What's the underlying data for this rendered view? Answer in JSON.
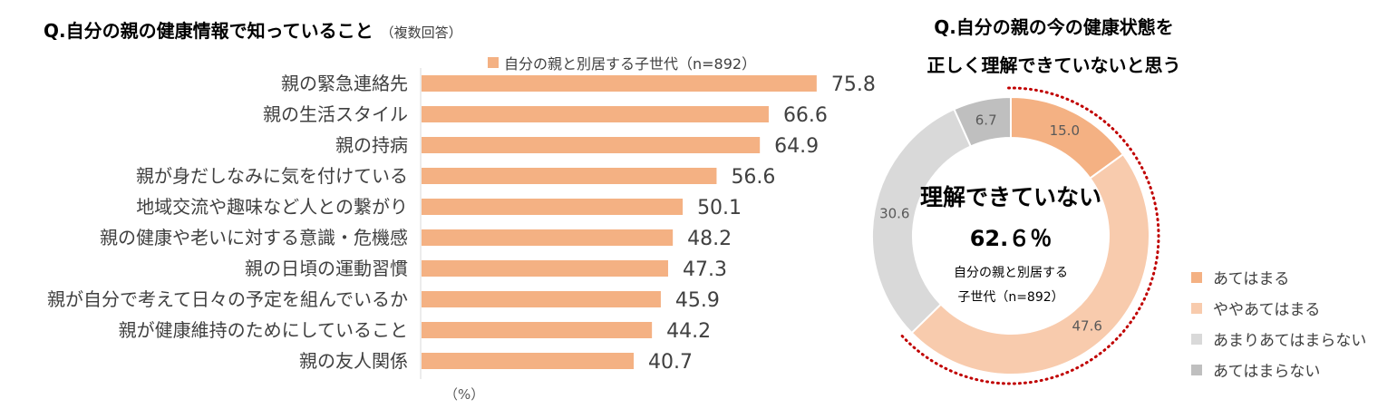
{
  "bar_chart": {
    "title": "Q.自分の親の健康情報で知っていること",
    "title_note": "（複数回答）",
    "legend": "自分の親と別居する子世代（n=892）",
    "unit_label": "（%）"
  },
  "donut": {
    "title_line1": "Q.自分の親の今の健康状態を",
    "title_line2": "正しく理解できていないと思う",
    "center_title": "理解できていない",
    "center_value": "62.６％",
    "center_sub_line1": "自分の親と別居する",
    "center_sub_line2": "子世代（n=892）"
  },
  "chart_data": [
    {
      "type": "bar",
      "orientation": "horizontal",
      "title": "Q.自分の親の健康情報で知っていること",
      "subtitle": "（複数回答）",
      "categories": [
        "親の緊急連絡先",
        "親の生活スタイル",
        "親の持病",
        "親が身だしなみに気を付けている",
        "地域交流や趣味など人との繋がり",
        "親の健康や老いに対する意識・危機感",
        "親の日頃の運動習慣",
        "親が自分で考えて日々の予定を組んでいるか",
        "親が健康維持のためにしていること",
        "親の友人関係"
      ],
      "series": [
        {
          "name": "自分の親と別居する子世代（n=892）",
          "values": [
            75.8,
            66.6,
            64.9,
            56.6,
            50.1,
            48.2,
            47.3,
            45.9,
            44.2,
            40.7
          ],
          "color": "#f4b183"
        }
      ],
      "xlabel": "（%）",
      "xlim": [
        0,
        100
      ],
      "grid": false,
      "legend_position": "top"
    },
    {
      "type": "pie",
      "style": "donut",
      "title": "Q.自分の親の今の健康状態を正しく理解できていないと思う",
      "slices": [
        {
          "label": "あてはまる",
          "value": 15.0,
          "color": "#f4b183"
        },
        {
          "label": "ややあてはまる",
          "value": 47.6,
          "color": "#f8cbad"
        },
        {
          "label": "あまりあてはまらない",
          "value": 30.6,
          "color": "#d9d9d9"
        },
        {
          "label": "あてはまらない",
          "value": 6.7,
          "color": "#bfbfbf"
        }
      ],
      "center_text": "理解できていない 62.６％",
      "highlight_color": "#c00000",
      "legend_position": "right"
    }
  ]
}
